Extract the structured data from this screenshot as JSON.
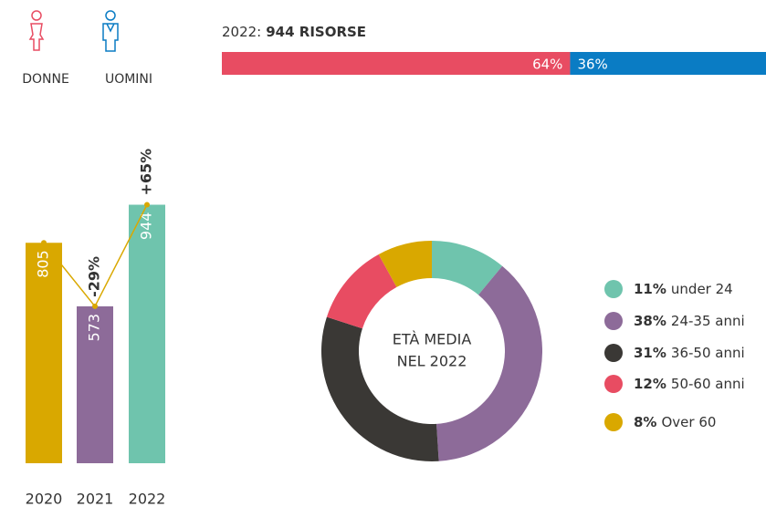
{
  "chart_data": [
    {
      "type": "stacked_bar",
      "title": [
        "2022:",
        "944 RISORSE"
      ],
      "series": [
        {
          "name": "DONNE",
          "color": "#e84c62",
          "values": [
            64
          ],
          "value_labels": [
            "64%"
          ]
        },
        {
          "name": "UOMINI",
          "color": "#0a7cc4",
          "values": [
            36
          ],
          "value_labels": [
            "36%"
          ]
        }
      ]
    },
    {
      "type": "bar",
      "categories": [
        "2020",
        "2021",
        "2022"
      ],
      "values": [
        805,
        573,
        944
      ],
      "colors": [
        "#d9a800",
        "#8d6b99",
        "#6fc4ad"
      ],
      "ylim": [
        0,
        1000
      ],
      "changes": [
        null,
        -29,
        65
      ],
      "change_labels": [
        null,
        "-29%",
        "+65%"
      ],
      "line_color": "#d9a800"
    },
    {
      "type": "donut",
      "center_text": [
        "ETÀ MEDIA",
        "NEL 2022"
      ],
      "categories": [
        "under 24",
        "24-35 anni",
        "36-50 anni",
        "50-60 anni",
        "Over 60"
      ],
      "values": [
        11,
        38,
        31,
        12,
        8
      ],
      "value_labels": [
        "11%",
        "38%",
        "31%",
        "12%",
        "8%"
      ],
      "colors": [
        "#6fc4ad",
        "#8d6b99",
        "#3a3835",
        "#e84c62",
        "#d9a800"
      ]
    }
  ]
}
